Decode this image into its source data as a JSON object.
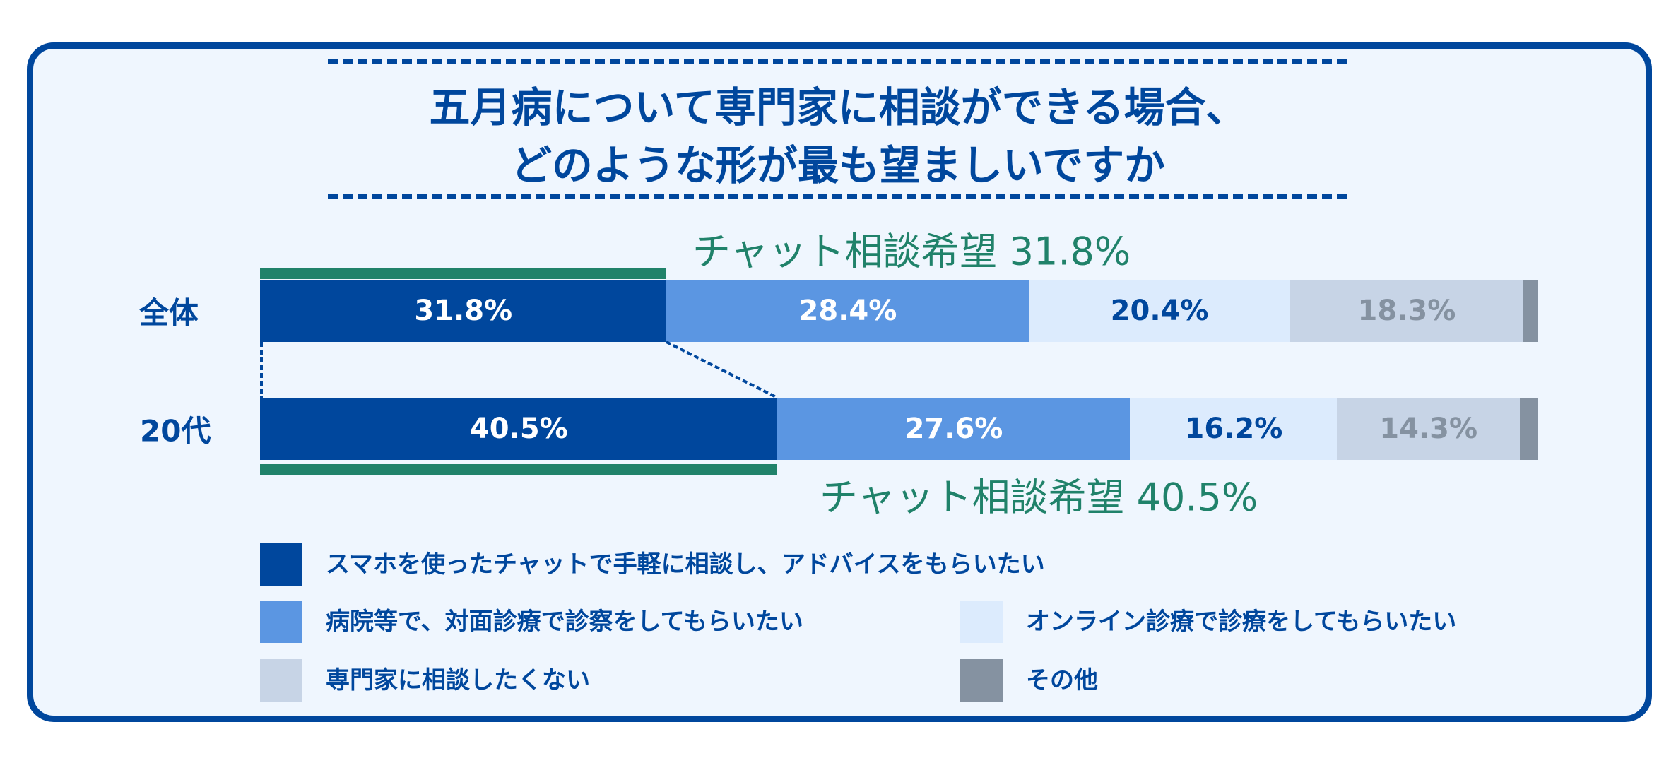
{
  "title_lines": [
    "五月病について専門家に相談ができる場合、",
    "どのような形が最も望ましいですか"
  ],
  "chart_data": {
    "type": "bar",
    "orientation": "horizontal-stacked-100",
    "title": "五月病について専門家に相談ができる場合、どのような形が最も望ましいですか",
    "categories": [
      "全体",
      "20代"
    ],
    "series": [
      {
        "name": "スマホを使ったチャットで手軽に相談し、アドバイスをもらいたい",
        "color": "#00479d",
        "label_color": "#ffffff",
        "values": [
          31.8,
          40.5
        ],
        "labels": [
          "31.8%",
          "40.5%"
        ]
      },
      {
        "name": "病院等で、対面診療で診察をしてもらいたい",
        "color": "#5b96e2",
        "label_color": "#ffffff",
        "values": [
          28.4,
          27.6
        ],
        "labels": [
          "28.4%",
          "27.6%"
        ]
      },
      {
        "name": "オンライン診療で診療をしてもらいたい",
        "color": "#dcebfd",
        "label_color": "#00479d",
        "values": [
          20.4,
          16.2
        ],
        "labels": [
          "20.4%",
          "16.2%"
        ]
      },
      {
        "name": "専門家に相談したくない",
        "color": "#c7d4e6",
        "label_color": "#8592a1",
        "values": [
          18.3,
          14.3
        ],
        "labels": [
          "18.3%",
          "14.3%"
        ]
      },
      {
        "name": "その他",
        "color": "#8592a1",
        "label_color": "#ffffff",
        "values": [
          1.1,
          1.4
        ],
        "labels": [
          "",
          ""
        ]
      }
    ],
    "annotations": [
      "チャット相談希望 31.8%",
      "チャット相談希望 40.5%"
    ],
    "xlim": [
      0,
      100
    ]
  }
}
